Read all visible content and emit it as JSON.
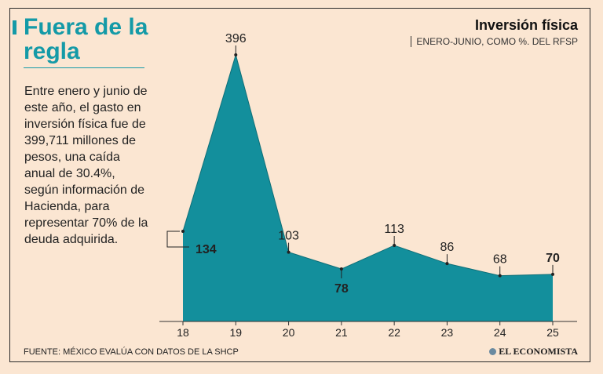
{
  "header": {
    "title": "Fuera de la regla",
    "description": "Entre enero y junio de este año, el gasto en inversión física fue de 399,711 millones de pesos, una caída anual de 30.4%, según información de Hacienda, para representar 70% de la deuda adquirida."
  },
  "chart_data": {
    "type": "area",
    "title": "Inversión física",
    "subtitle": "ENERO-JUNIO, COMO %. DEL RFSP",
    "xlabel": "",
    "ylabel": "",
    "categories": [
      "18",
      "19",
      "20",
      "21",
      "22",
      "23",
      "24",
      "25"
    ],
    "values": [
      134,
      396,
      103,
      78,
      113,
      86,
      68,
      70
    ],
    "ylim": [
      0,
      396
    ],
    "grid": false,
    "color": "#138f9c"
  },
  "footer": {
    "source": "FUENTE: MÉXICO EVALÚA CON DATOS DE LA SHCP",
    "brand": "EL ECONOMISTA"
  }
}
